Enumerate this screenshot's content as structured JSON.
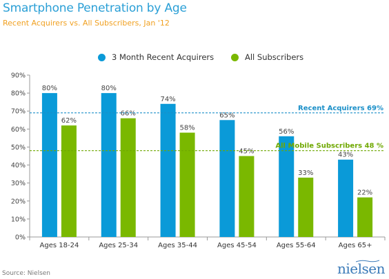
{
  "header": {
    "title": "Smartphone Penetration by Age",
    "subtitle": "Recent Acquirers vs. All Subscribers, Jan '12"
  },
  "footer": {
    "source": "Source: Nielsen",
    "logo": "nielsen"
  },
  "colors": {
    "title": "#2a9fd6",
    "subtitle": "#f0a020",
    "series_recent": "#0a9ad8",
    "series_all": "#7ab800",
    "reference_recent": "#1a8fc8",
    "reference_all": "#6fa800",
    "logo": "#3a7ab8"
  },
  "chart_data": {
    "type": "bar",
    "categories": [
      "Ages 18-24",
      "Ages 25-34",
      "Ages 35-44",
      "Ages 45-54",
      "Ages 55-64",
      "Ages 65+"
    ],
    "series": [
      {
        "name": "3 Month Recent Acquirers",
        "values": [
          80,
          80,
          74,
          65,
          56,
          43
        ],
        "labels": [
          "80%",
          "80%",
          "74%",
          "65%",
          "56%",
          "43%"
        ],
        "color": "#0a9ad8"
      },
      {
        "name": "All Subscribers",
        "values": [
          62,
          66,
          58,
          45,
          33,
          22
        ],
        "labels": [
          "62%",
          "66%",
          "58%",
          "45%",
          "33%",
          "22%"
        ],
        "color": "#7ab800"
      }
    ],
    "reference_lines": [
      {
        "label": "Recent Acquirers 69%",
        "value": 69,
        "color": "#1a8fc8"
      },
      {
        "label": "All Mobile Subscribers 48 %",
        "value": 48,
        "color": "#6fa800"
      }
    ],
    "ylim": [
      0,
      90
    ],
    "yticks": [
      0,
      10,
      20,
      30,
      40,
      50,
      60,
      70,
      80,
      90
    ],
    "ytick_labels": [
      "0%",
      "10%",
      "20%",
      "30%",
      "40%",
      "50%",
      "60%",
      "70%",
      "80%",
      "90%"
    ],
    "grid": false,
    "legend_position": "top-center"
  }
}
